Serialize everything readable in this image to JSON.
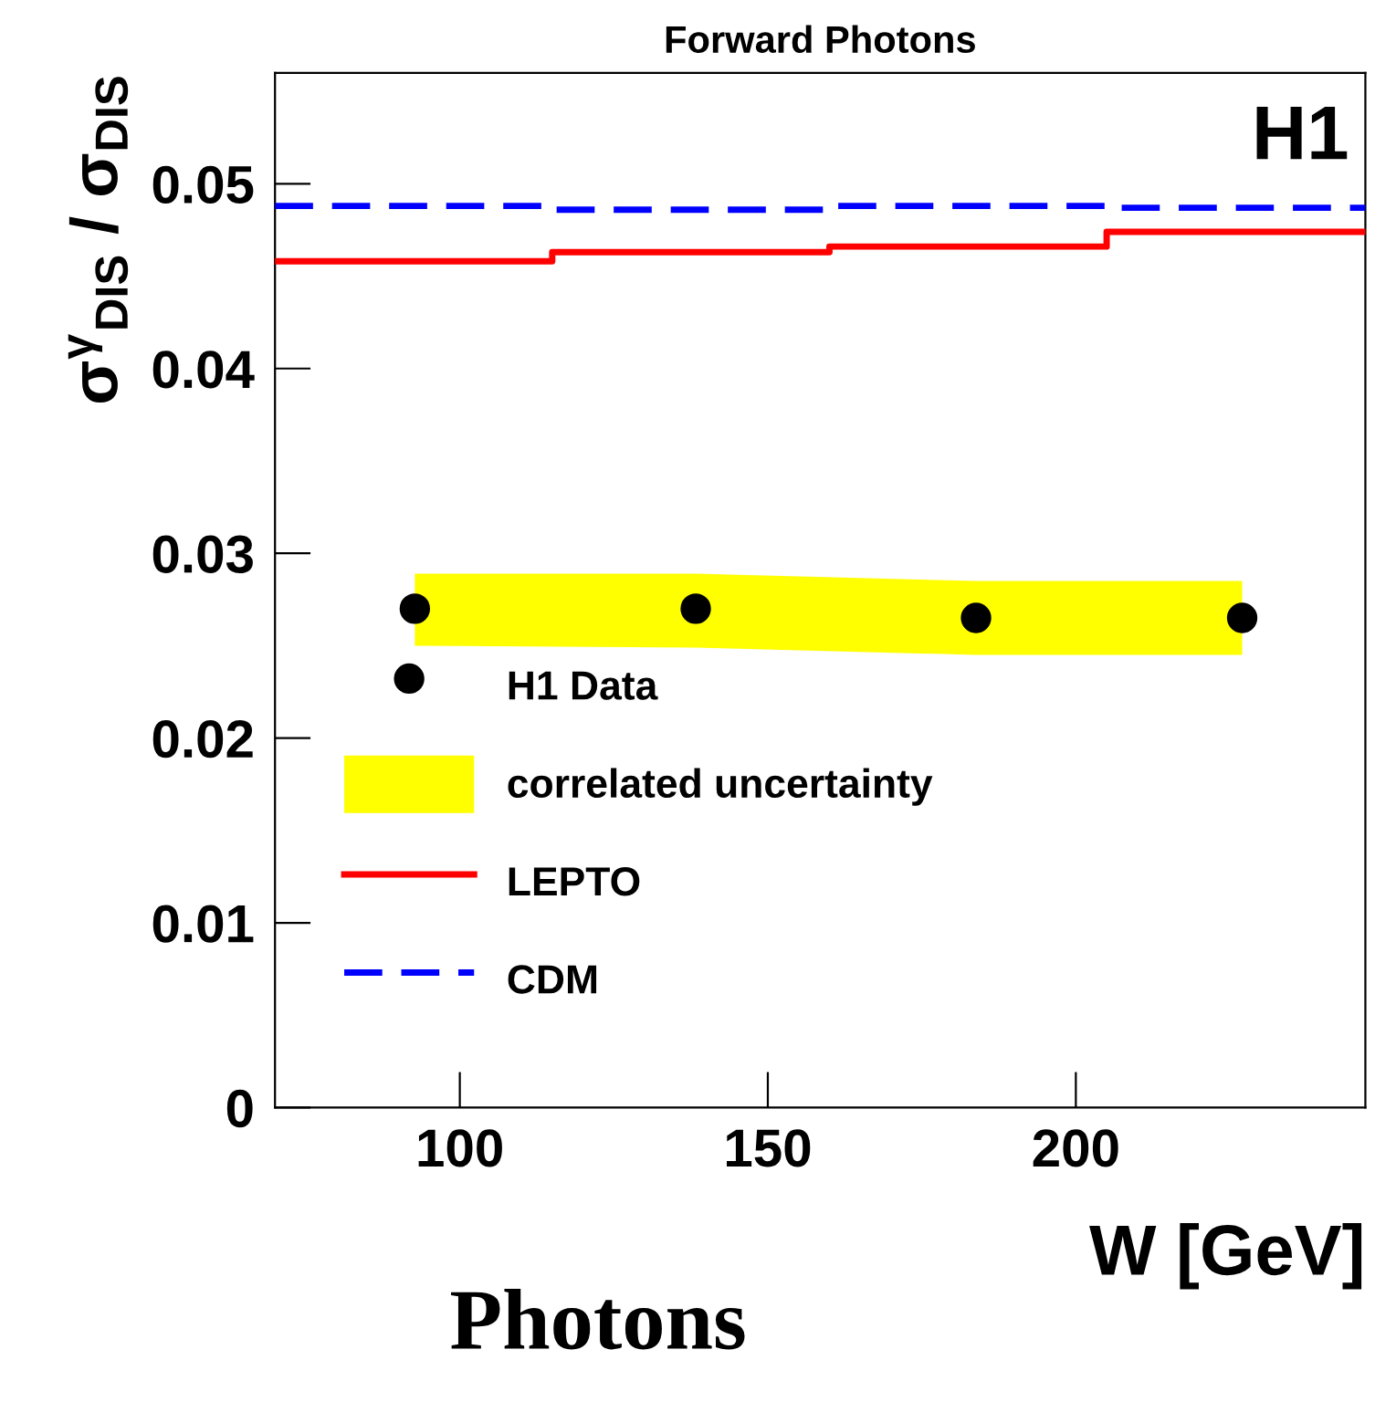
{
  "chart_data": {
    "type": "scatter",
    "title": "Forward Photons",
    "xlabel": "W [GeV]",
    "ylabel": "σ$^{γ}$$_{DIS}$ / σ$_{DIS}$",
    "annotations": [
      "H1",
      "Photons"
    ],
    "xlim": [
      70,
      247
    ],
    "xticks": [
      100,
      150,
      200
    ],
    "ylim": [
      0,
      0.056
    ],
    "yticks": [
      0,
      0.01,
      0.02,
      0.03,
      0.04,
      0.05
    ],
    "grid": false,
    "legend": "bottom left",
    "series": [
      {
        "name": "H1 Data",
        "color": "#000000",
        "marker": "circle",
        "x": [
          92.7,
          138.3,
          183.8,
          227
        ],
        "values": [
          0.027,
          0.027,
          0.0265,
          0.0265
        ]
      },
      {
        "type": "area",
        "name": "correlated uncertainty",
        "color": "#ffff00",
        "x": [
          92.7,
          138.3,
          183.8,
          227
        ],
        "values": [
          null,
          null,
          null,
          null
        ],
        "lower": [
          0.025,
          0.0249,
          0.0245,
          0.0245
        ],
        "upper": [
          0.0289,
          0.0289,
          0.0285,
          0.0285
        ]
      },
      {
        "type": "step",
        "name": "LEPTO",
        "color": "#ff0000",
        "line_style": "solid",
        "x": [
          70,
          115,
          160,
          205,
          247
        ],
        "values": [
          0.0458,
          0.0463,
          0.0466,
          0.0474,
          0.0474
        ]
      },
      {
        "type": "step",
        "name": "CDM",
        "color": "#0000ff",
        "line_style": "dashed",
        "x": [
          70,
          115,
          160,
          205,
          247
        ],
        "values": [
          0.0488,
          0.0486,
          0.0488,
          0.0487,
          0.0487
        ]
      }
    ]
  }
}
